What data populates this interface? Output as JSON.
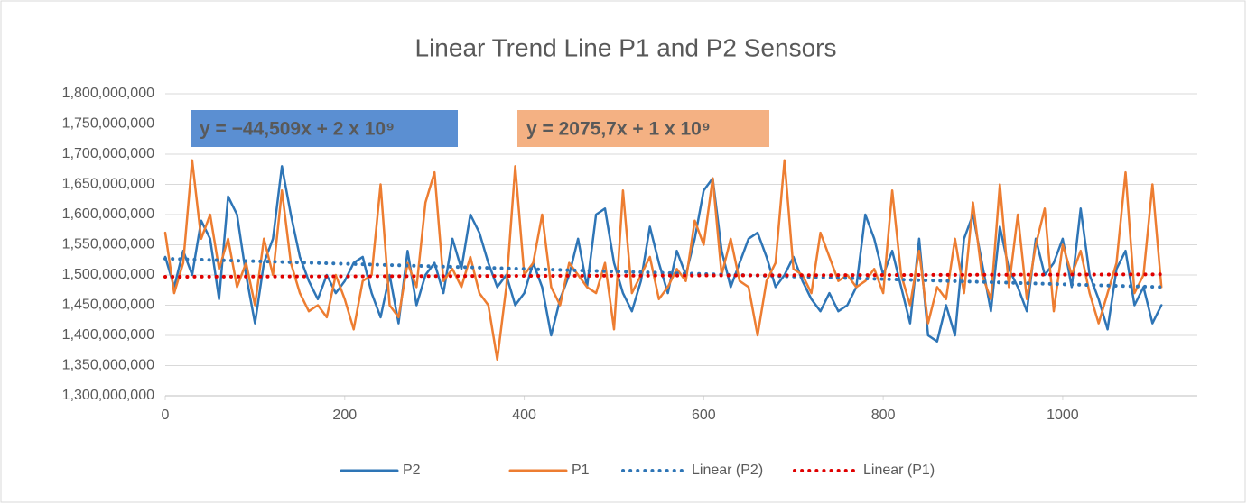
{
  "chart_data": {
    "type": "line",
    "title": "Linear Trend Line P1 and P2 Sensors",
    "annotations": [
      "y = −44,509x + 2 x 10⁹",
      "y = 2075,7x + 1 x 10⁹"
    ],
    "x": [
      0,
      10,
      20,
      30,
      40,
      50,
      60,
      70,
      80,
      90,
      100,
      110,
      120,
      130,
      140,
      150,
      160,
      170,
      180,
      190,
      200,
      210,
      220,
      230,
      240,
      250,
      260,
      270,
      280,
      290,
      300,
      310,
      320,
      330,
      340,
      350,
      360,
      370,
      380,
      390,
      400,
      410,
      420,
      430,
      440,
      450,
      460,
      470,
      480,
      490,
      500,
      510,
      520,
      530,
      540,
      550,
      560,
      570,
      580,
      590,
      600,
      610,
      620,
      630,
      640,
      650,
      660,
      670,
      680,
      690,
      700,
      710,
      720,
      730,
      740,
      750,
      760,
      770,
      780,
      790,
      800,
      810,
      820,
      830,
      840,
      850,
      860,
      870,
      880,
      890,
      900,
      910,
      920,
      930,
      940,
      950,
      960,
      970,
      980,
      990,
      1000,
      1010,
      1020,
      1030,
      1040,
      1050,
      1060,
      1070,
      1080,
      1090,
      1100,
      1110
    ],
    "series": [
      {
        "name": "P2",
        "color": "#2e75b6",
        "style": "solid",
        "values": [
          1530000000,
          1480000000,
          1540000000,
          1500000000,
          1590000000,
          1560000000,
          1460000000,
          1630000000,
          1600000000,
          1500000000,
          1420000000,
          1520000000,
          1560000000,
          1680000000,
          1600000000,
          1530000000,
          1490000000,
          1460000000,
          1500000000,
          1470000000,
          1490000000,
          1520000000,
          1530000000,
          1470000000,
          1430000000,
          1500000000,
          1420000000,
          1540000000,
          1450000000,
          1500000000,
          1520000000,
          1470000000,
          1560000000,
          1510000000,
          1600000000,
          1570000000,
          1520000000,
          1480000000,
          1500000000,
          1450000000,
          1470000000,
          1520000000,
          1480000000,
          1400000000,
          1460000000,
          1500000000,
          1560000000,
          1480000000,
          1600000000,
          1610000000,
          1520000000,
          1470000000,
          1440000000,
          1490000000,
          1580000000,
          1520000000,
          1470000000,
          1540000000,
          1500000000,
          1560000000,
          1640000000,
          1660000000,
          1540000000,
          1480000000,
          1520000000,
          1560000000,
          1570000000,
          1530000000,
          1480000000,
          1500000000,
          1530000000,
          1490000000,
          1460000000,
          1440000000,
          1470000000,
          1440000000,
          1450000000,
          1480000000,
          1600000000,
          1560000000,
          1500000000,
          1540000000,
          1480000000,
          1420000000,
          1560000000,
          1400000000,
          1390000000,
          1450000000,
          1400000000,
          1560000000,
          1600000000,
          1520000000,
          1440000000,
          1580000000,
          1510000000,
          1480000000,
          1440000000,
          1560000000,
          1500000000,
          1520000000,
          1560000000,
          1480000000,
          1610000000,
          1500000000,
          1460000000,
          1410000000,
          1510000000,
          1540000000,
          1450000000,
          1480000000,
          1420000000,
          1450000000
        ]
      },
      {
        "name": "P1",
        "color": "#ed7d31",
        "style": "solid",
        "values": [
          1570000000,
          1470000000,
          1520000000,
          1690000000,
          1560000000,
          1600000000,
          1510000000,
          1560000000,
          1480000000,
          1520000000,
          1450000000,
          1560000000,
          1500000000,
          1640000000,
          1520000000,
          1470000000,
          1440000000,
          1450000000,
          1430000000,
          1500000000,
          1460000000,
          1410000000,
          1490000000,
          1500000000,
          1650000000,
          1450000000,
          1430000000,
          1520000000,
          1480000000,
          1620000000,
          1670000000,
          1490000000,
          1510000000,
          1480000000,
          1530000000,
          1470000000,
          1450000000,
          1360000000,
          1480000000,
          1680000000,
          1500000000,
          1520000000,
          1600000000,
          1480000000,
          1450000000,
          1520000000,
          1500000000,
          1480000000,
          1470000000,
          1520000000,
          1410000000,
          1640000000,
          1470000000,
          1500000000,
          1530000000,
          1460000000,
          1480000000,
          1510000000,
          1490000000,
          1590000000,
          1550000000,
          1660000000,
          1500000000,
          1560000000,
          1490000000,
          1480000000,
          1400000000,
          1490000000,
          1520000000,
          1690000000,
          1510000000,
          1500000000,
          1470000000,
          1570000000,
          1530000000,
          1490000000,
          1500000000,
          1480000000,
          1490000000,
          1510000000,
          1470000000,
          1640000000,
          1500000000,
          1450000000,
          1540000000,
          1420000000,
          1480000000,
          1460000000,
          1560000000,
          1470000000,
          1620000000,
          1500000000,
          1460000000,
          1650000000,
          1480000000,
          1600000000,
          1460000000,
          1550000000,
          1610000000,
          1440000000,
          1550000000,
          1500000000,
          1540000000,
          1470000000,
          1420000000,
          1470000000,
          1520000000,
          1670000000,
          1470000000,
          1500000000,
          1650000000,
          1480000000
        ]
      },
      {
        "name": "Linear (P2)",
        "color": "#2e75b6",
        "style": "dotted",
        "x": [
          0,
          1110
        ],
        "values": [
          1527000000,
          1480000000
        ]
      },
      {
        "name": "Linear (P1)",
        "color": "#e00000",
        "style": "dotted",
        "x": [
          0,
          1110
        ],
        "values": [
          1497000000,
          1501000000
        ]
      }
    ],
    "xlim": [
      0,
      1150
    ],
    "xticks": [
      0,
      200,
      400,
      600,
      800,
      1000
    ],
    "ylim": [
      1300000000,
      1800000000
    ],
    "yticks": [
      {
        "value": 1300000000,
        "label": "1,300,000,000"
      },
      {
        "value": 1350000000,
        "label": "1,350,000,000"
      },
      {
        "value": 1400000000,
        "label": "1,400,000,000"
      },
      {
        "value": 1450000000,
        "label": "1,450,000,000"
      },
      {
        "value": 1500000000,
        "label": "1,500,000,000"
      },
      {
        "value": 1550000000,
        "label": "1,550,000,000"
      },
      {
        "value": 1600000000,
        "label": "1,600,000,000"
      },
      {
        "value": 1650000000,
        "label": "1,650,000,000"
      },
      {
        "value": 1700000000,
        "label": "1,700,000,000"
      },
      {
        "value": 1750000000,
        "label": "1,750,000,000"
      },
      {
        "value": 1800000000,
        "label": "1,800,000,000"
      }
    ],
    "grid": true,
    "legend": "bottom"
  }
}
